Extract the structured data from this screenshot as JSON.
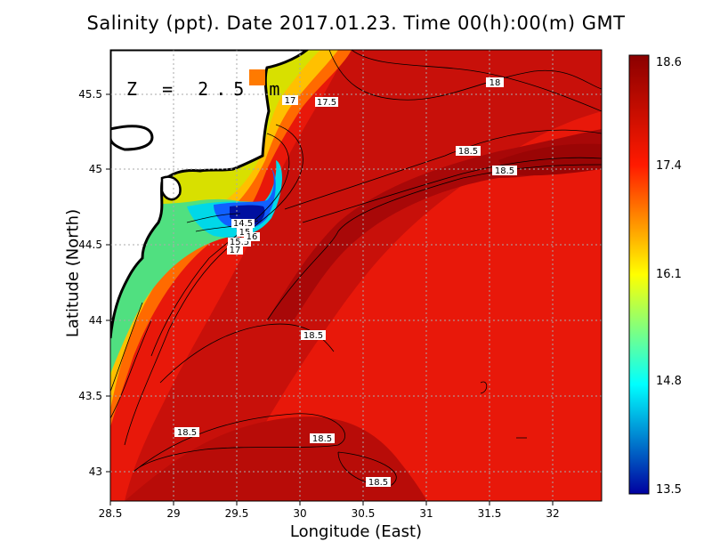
{
  "title": "Salinity (ppt). Date 2017.01.23. Time 00(h):00(m) GMT",
  "depth_label": "Z = 2.5 m",
  "xlabel": "Longitude (East)",
  "ylabel": "Latitude (North)",
  "x_ticks": [
    "28.5",
    "29",
    "29.5",
    "30",
    "30.5",
    "31",
    "31.5",
    "32"
  ],
  "y_ticks": [
    "43",
    "43.5",
    "44",
    "44.5",
    "45",
    "45.5"
  ],
  "colorbar": {
    "ticks": [
      "18.6",
      "17.4",
      "16.1",
      "14.8",
      "13.5"
    ],
    "colors": [
      "#8b0000",
      "#ff1a00",
      "#ffff00",
      "#00ffff",
      "#0000a0"
    ]
  },
  "contour_labels": [
    "18",
    "17.5",
    "17",
    "18.5",
    "18.5",
    "14.5",
    "15",
    "15.5",
    "16",
    "17",
    "18.5",
    "18.5",
    "18.5",
    "18.5"
  ],
  "chart_data": {
    "type": "heatmap",
    "title": "Salinity (ppt). Date 2017.01.23. Time 00(h):00(m) GMT",
    "xlabel": "Longitude (East)",
    "ylabel": "Latitude (North)",
    "xlim": [
      28.5,
      32.4
    ],
    "ylim": [
      42.8,
      45.8
    ],
    "value_range": [
      13.5,
      18.6
    ],
    "grid": true,
    "colorbar_placement": "right",
    "contour_labels": [
      {
        "text": "18",
        "lon": 31.55,
        "lat": 45.57
      },
      {
        "text": "17.5",
        "lon": 30.2,
        "lat": 45.44
      },
      {
        "text": "17",
        "lon": 29.92,
        "lat": 45.46
      },
      {
        "text": "18.5",
        "lon": 31.33,
        "lat": 45.12
      },
      {
        "text": "18.5",
        "lon": 31.6,
        "lat": 44.99
      },
      {
        "text": "14.5",
        "lon": 29.55,
        "lat": 44.64
      },
      {
        "text": "15",
        "lon": 29.55,
        "lat": 44.59
      },
      {
        "text": "15.5",
        "lon": 29.52,
        "lat": 44.53
      },
      {
        "text": "16",
        "lon": 29.55,
        "lat": 44.57
      },
      {
        "text": "17",
        "lon": 29.5,
        "lat": 44.48
      },
      {
        "text": "18.5",
        "lon": 30.1,
        "lat": 43.92
      },
      {
        "text": "18.5",
        "lon": 29.1,
        "lat": 43.25
      },
      {
        "text": "18.5",
        "lon": 30.17,
        "lat": 43.21
      },
      {
        "text": "18.5",
        "lon": 30.62,
        "lat": 42.94
      }
    ]
  }
}
